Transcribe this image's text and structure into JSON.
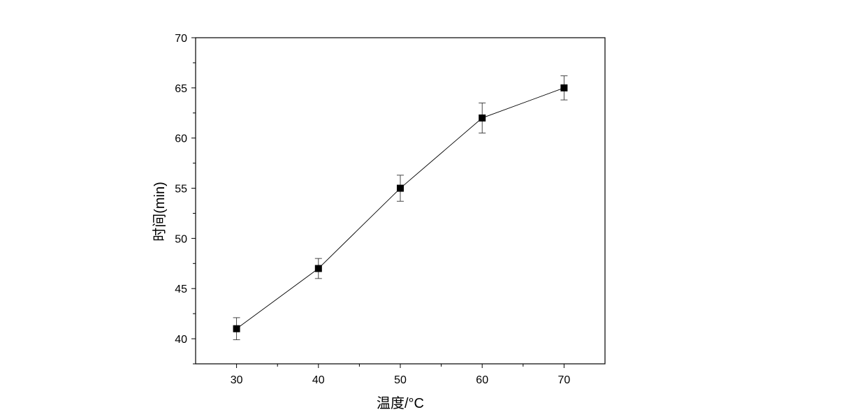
{
  "chart_data": {
    "type": "line",
    "title": "",
    "xlabel": "温度/°C",
    "ylabel": "时间(min)",
    "xlim": [
      25,
      75
    ],
    "ylim": [
      37.5,
      70
    ],
    "x_ticks": [
      30,
      40,
      50,
      60,
      70
    ],
    "y_ticks": [
      40,
      45,
      50,
      55,
      60,
      65,
      70
    ],
    "x_tick_labels": [
      "30",
      "40",
      "50",
      "60",
      "70"
    ],
    "y_tick_labels": [
      "40",
      "45",
      "50",
      "55",
      "60",
      "65",
      "70"
    ],
    "grid": false,
    "legend": "none",
    "series": [
      {
        "x": [
          30,
          40,
          50,
          60,
          70
        ],
        "y": [
          41,
          47,
          55,
          62,
          65
        ],
        "error": [
          1.1,
          1.0,
          1.3,
          1.5,
          1.2
        ],
        "marker": "square",
        "color": "#000000"
      }
    ]
  }
}
